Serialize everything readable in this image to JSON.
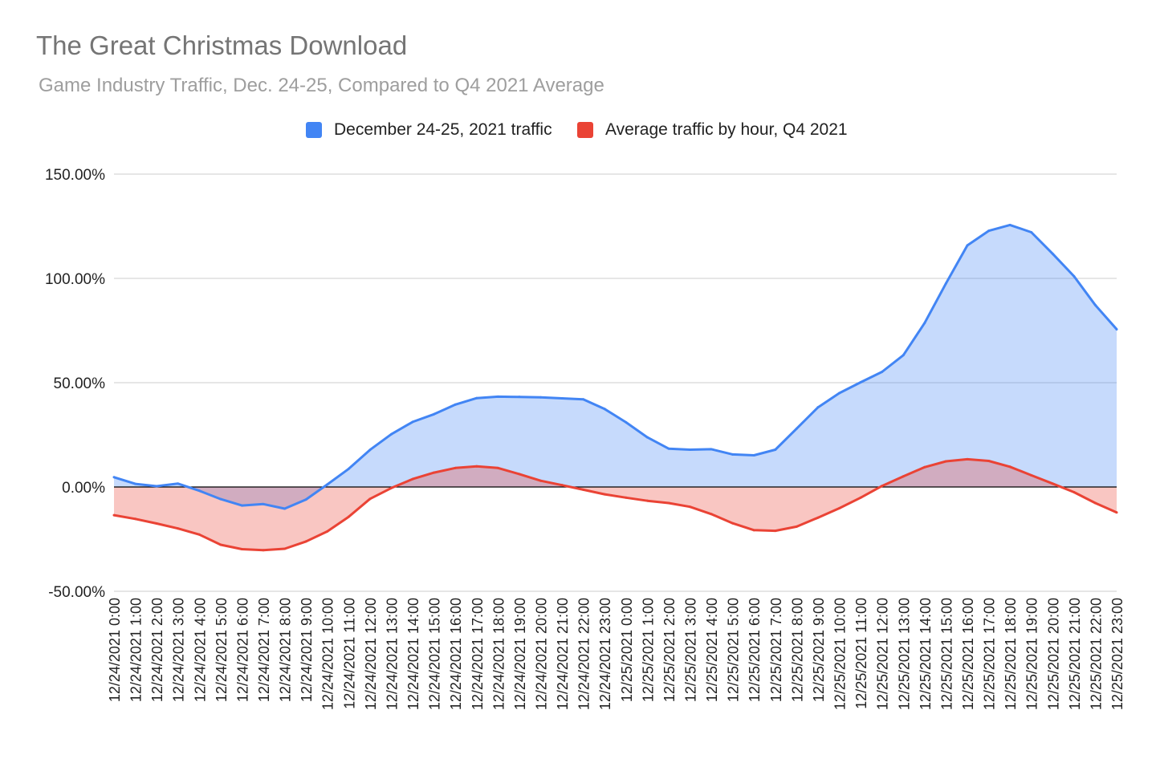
{
  "title": "The Great Christmas Download",
  "subtitle": "Game Industry Traffic, Dec. 24-25, Compared to Q4 2021 Average",
  "colors": {
    "series1": "#4285f4",
    "series1_fill": "#c6d9f8",
    "series2": "#ea4335",
    "series2_fill": "#f6c4c0",
    "overlap": "#d3a6bc",
    "grid": "#cccccc",
    "zero_line": "#000000"
  },
  "chart_data": {
    "type": "area",
    "title": "The Great Christmas Download",
    "subtitle": "Game Industry Traffic, Dec. 24-25, Compared to Q4 2021 Average",
    "legend_position": "top",
    "grid": true,
    "ylim": [
      -50,
      150
    ],
    "yticks": [
      "150.00%",
      "100.00%",
      "50.00%",
      "0.00%",
      "-50.00%"
    ],
    "ytick_values": [
      150,
      100,
      50,
      0,
      -50
    ],
    "x": [
      "12/24/2021 0:00",
      "12/24/2021 1:00",
      "12/24/2021 2:00",
      "12/24/2021 3:00",
      "12/24/2021 4:00",
      "12/24/2021 5:00",
      "12/24/2021 6:00",
      "12/24/2021 7:00",
      "12/24/2021 8:00",
      "12/24/2021 9:00",
      "12/24/2021 10:00",
      "12/24/2021 11:00",
      "12/24/2021 12:00",
      "12/24/2021 13:00",
      "12/24/2021 14:00",
      "12/24/2021 15:00",
      "12/24/2021 16:00",
      "12/24/2021 17:00",
      "12/24/2021 18:00",
      "12/24/2021 19:00",
      "12/24/2021 20:00",
      "12/24/2021 21:00",
      "12/24/2021 22:00",
      "12/24/2021 23:00",
      "12/25/2021 0:00",
      "12/25/2021 1:00",
      "12/25/2021 2:00",
      "12/25/2021 3:00",
      "12/25/2021 4:00",
      "12/25/2021 5:00",
      "12/25/2021 6:00",
      "12/25/2021 7:00",
      "12/25/2021 8:00",
      "12/25/2021 9:00",
      "12/25/2021 10:00",
      "12/25/2021 11:00",
      "12/25/2021 12:00",
      "12/25/2021 13:00",
      "12/25/2021 14:00",
      "12/25/2021 15:00",
      "12/25/2021 16:00",
      "12/25/2021 17:00",
      "12/25/2021 18:00",
      "12/25/2021 19:00",
      "12/25/2021 20:00",
      "12/25/2021 21:00",
      "12/25/2021 22:00",
      "12/25/2021 23:00"
    ],
    "series": [
      {
        "name": "December 24-25, 2021 traffic",
        "values": [
          4.7,
          1.5,
          0.4,
          1.6,
          -1.8,
          -5.8,
          -8.9,
          -8.2,
          -10.4,
          -6.0,
          1.2,
          8.7,
          17.8,
          25.3,
          31.2,
          34.9,
          39.5,
          42.6,
          43.3,
          43.2,
          43.0,
          42.5,
          42.0,
          37.4,
          31.0,
          23.8,
          18.4,
          17.9,
          18.1,
          15.6,
          15.2,
          17.9,
          28.0,
          38.2,
          45.0,
          50.2,
          55.2,
          63.2,
          78.6,
          97.6,
          115.8,
          122.8,
          125.6,
          122.1,
          111.8,
          101.0,
          87.2,
          75.6
        ]
      },
      {
        "name": "Average traffic by hour, Q4 2021",
        "values": [
          -13.5,
          -15.3,
          -17.5,
          -19.9,
          -22.8,
          -27.7,
          -29.8,
          -30.3,
          -29.6,
          -26.1,
          -21.3,
          -14.3,
          -5.7,
          -0.5,
          3.8,
          6.9,
          9.1,
          9.9,
          9.1,
          6.2,
          3.0,
          0.9,
          -1.3,
          -3.5,
          -5.1,
          -6.6,
          -7.7,
          -9.5,
          -13.0,
          -17.4,
          -20.7,
          -21.0,
          -19.0,
          -14.7,
          -10.2,
          -5.1,
          0.5,
          5.1,
          9.5,
          12.3,
          13.3,
          12.5,
          9.7,
          5.6,
          1.6,
          -2.5,
          -7.7,
          -12.2
        ]
      }
    ]
  }
}
